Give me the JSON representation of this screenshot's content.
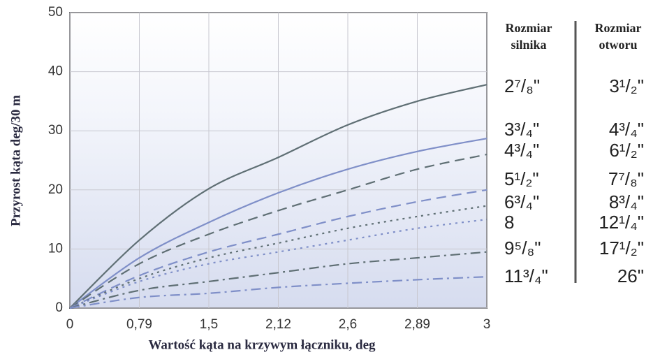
{
  "chart_data": {
    "type": "line",
    "y_label": "Przyrost kąta  deg/30 m",
    "x_label": "Wartość kąta na krzywym łączniku, deg",
    "categories": [
      "0",
      "0,79",
      "1,5",
      "2,12",
      "2,6",
      "2,89",
      "3"
    ],
    "ylim": [
      0,
      50
    ],
    "yticks": [
      0,
      10,
      20,
      30,
      40,
      50
    ],
    "grid": true,
    "legend_headers": [
      [
        "Rozmiar",
        "silnika"
      ],
      [
        "Rozmiar",
        "otworu"
      ]
    ],
    "series": [
      {
        "name": "2⁷/₈\"",
        "hole": "3¹/₂\"",
        "color": "#5f6f74",
        "dash": "solid",
        "values": [
          0,
          11.5,
          20.2,
          25.5,
          31,
          35,
          37.8
        ]
      },
      {
        "name": "3³/₄\"",
        "hole": "4³/₄\"",
        "color": "#7f8fc8",
        "dash": "solid",
        "values": [
          0,
          8.5,
          14.5,
          19.5,
          23.5,
          26.5,
          28.7
        ]
      },
      {
        "name": "4³/₄\"",
        "hole": "6¹/₂\"",
        "color": "#5f6f74",
        "dash": "dashed",
        "values": [
          0,
          7.5,
          12.5,
          16.5,
          20,
          23.5,
          26
        ]
      },
      {
        "name": "5¹/₂\"",
        "hole": "7⁷/₈\"",
        "color": "#7f8fc8",
        "dash": "dashed",
        "values": [
          0,
          5.5,
          9.5,
          12.5,
          15.5,
          18,
          20
        ]
      },
      {
        "name": "6³/₄\"",
        "hole": "8³/₄\"",
        "color": "#5f6f74",
        "dash": "dotted",
        "values": [
          0,
          5,
          8.5,
          11,
          13.5,
          15.5,
          17.3
        ]
      },
      {
        "name": "8",
        "hole": "12¹/₄\"",
        "color": "#7f8fc8",
        "dash": "dotted",
        "values": [
          0,
          4.5,
          7.5,
          9.5,
          11.5,
          13.5,
          15
        ]
      },
      {
        "name": "9⁵/₈\"",
        "hole": "17¹/₂\"",
        "color": "#5f6f74",
        "dash": "dashdot",
        "values": [
          0,
          3,
          4.5,
          6,
          7.5,
          8.5,
          9.5
        ]
      },
      {
        "name": "11³/₄\"",
        "hole": "26\"",
        "color": "#7f8fc8",
        "dash": "dashdot",
        "values": [
          0,
          1.8,
          2.5,
          3.5,
          4.2,
          4.8,
          5.3
        ]
      }
    ]
  }
}
